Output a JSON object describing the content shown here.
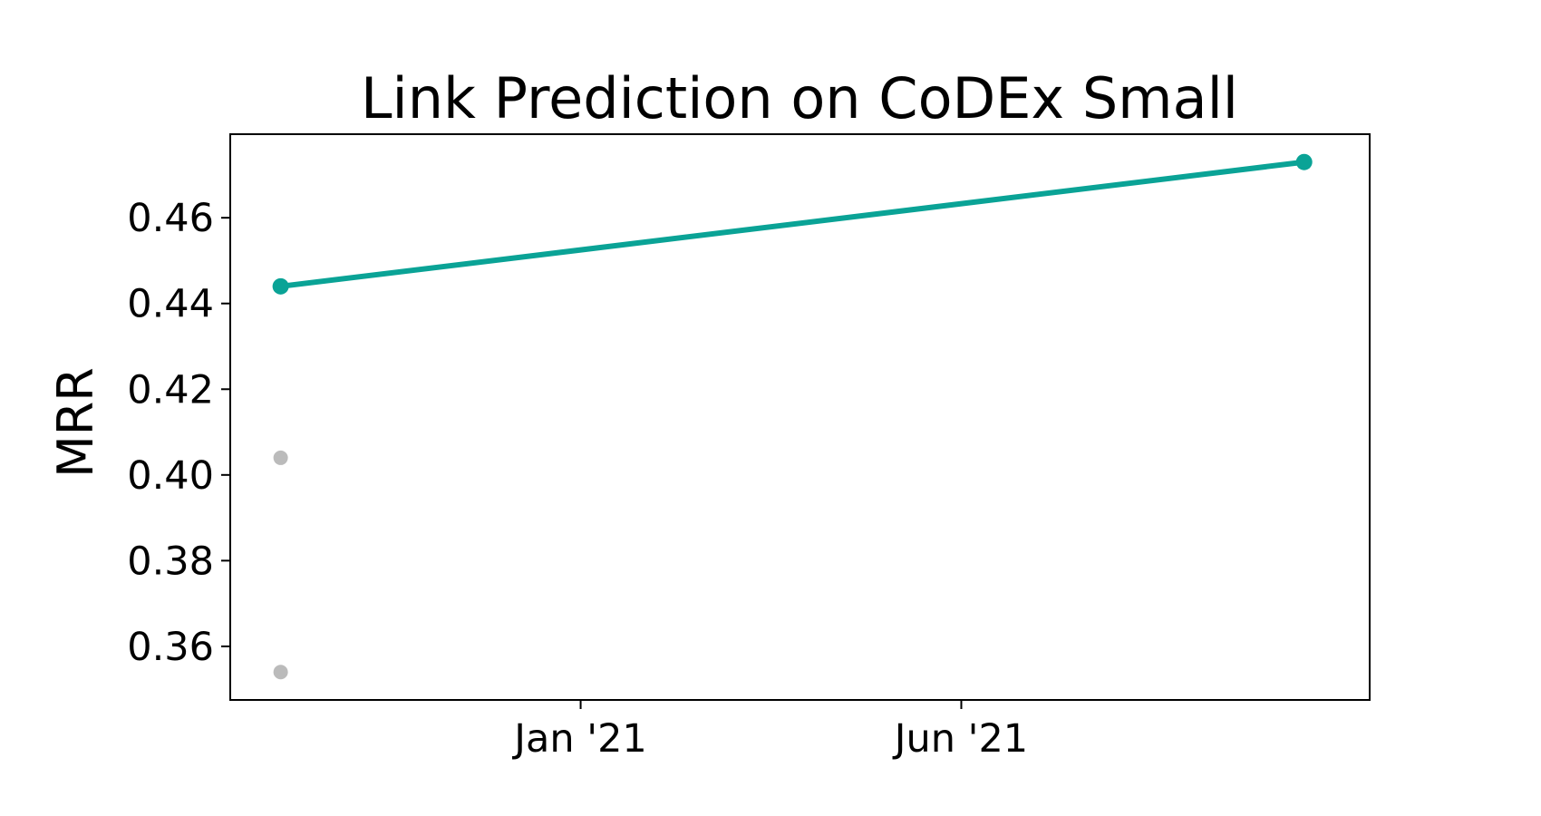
{
  "chart_data": {
    "type": "line",
    "title": "Link Prediction on CoDEx Small",
    "xlabel": "",
    "ylabel": "MRR",
    "x_axis_kind": "date",
    "xlim": [
      "2020-08-15",
      "2021-11-10"
    ],
    "ylim": [
      0.3475,
      0.4795
    ],
    "x_ticks": [
      {
        "date": "2021-01-01",
        "label": "Jan '21"
      },
      {
        "date": "2021-06-01",
        "label": "Jun '21"
      }
    ],
    "y_ticks": [
      {
        "value": 0.36,
        "label": "0.36"
      },
      {
        "value": 0.38,
        "label": "0.38"
      },
      {
        "value": 0.4,
        "label": "0.40"
      },
      {
        "value": 0.42,
        "label": "0.42"
      },
      {
        "value": 0.44,
        "label": "0.44"
      },
      {
        "value": 0.46,
        "label": "0.46"
      }
    ],
    "grid": false,
    "legend": "none",
    "series": [
      {
        "style": "line-with-markers",
        "color": "#0aa396",
        "points": [
          {
            "x": "2020-09-04",
            "y": 0.444
          },
          {
            "x": "2021-10-15",
            "y": 0.473
          }
        ]
      },
      {
        "style": "markers-only",
        "color": "#bbbbbb",
        "points": [
          {
            "x": "2020-09-04",
            "y": 0.404
          },
          {
            "x": "2020-09-04",
            "y": 0.354
          }
        ]
      }
    ]
  }
}
